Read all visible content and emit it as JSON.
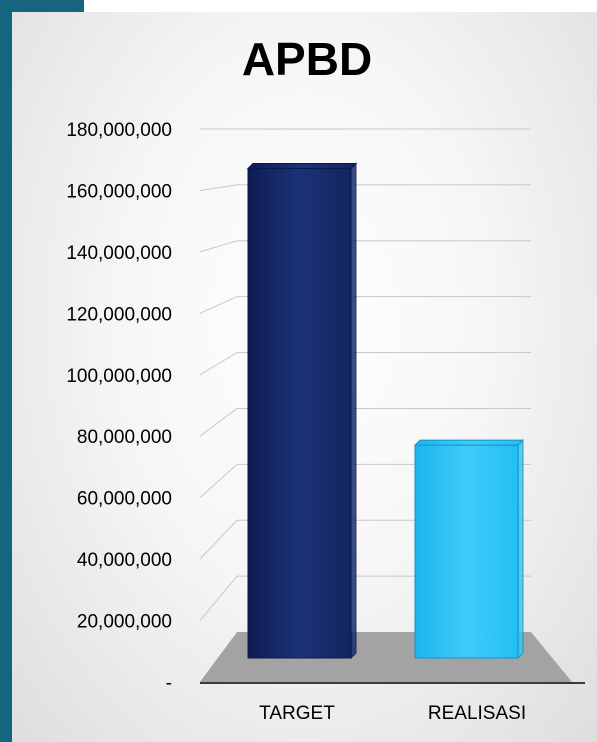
{
  "chart_data": {
    "type": "bar",
    "title": "APBD",
    "categories": [
      "TARGET",
      "REALISASI"
    ],
    "values": [
      168000000,
      69000000
    ],
    "ylim": [
      0,
      180000000
    ],
    "yticks": [
      0,
      20000000,
      40000000,
      60000000,
      80000000,
      100000000,
      120000000,
      140000000,
      160000000,
      180000000
    ],
    "ytick_labels": [
      "-",
      "20,000,000",
      "40,000,000",
      "60,000,000",
      "80,000,000",
      "100,000,000",
      "120,000,000",
      "140,000,000",
      "160,000,000",
      "180,000,000"
    ],
    "grid": true,
    "legend": "none",
    "colors": {
      "TARGET": "#16286a",
      "REALISASI": "#22c0f5",
      "floor": "#a3a3a3"
    }
  }
}
